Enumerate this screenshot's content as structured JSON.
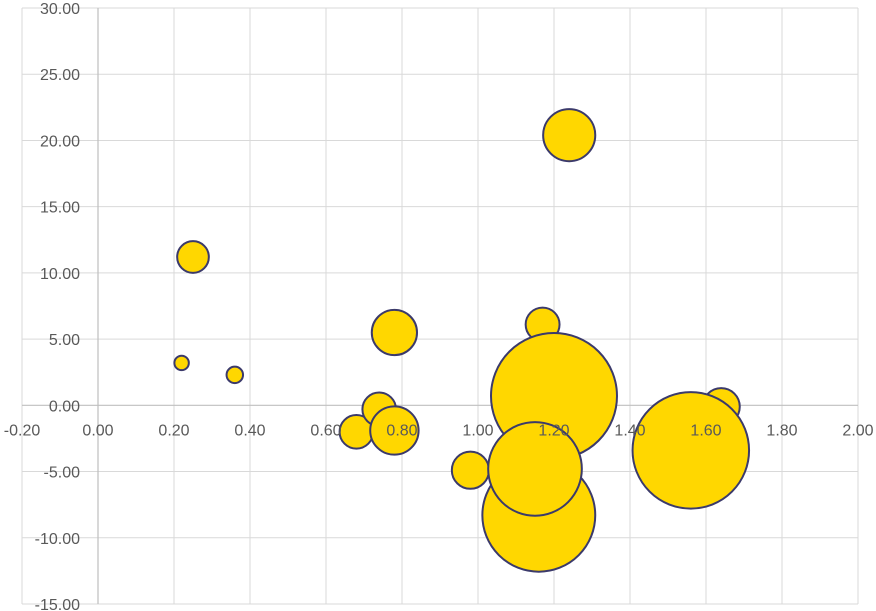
{
  "chart_data": {
    "type": "bubble",
    "title": "",
    "xlabel": "",
    "ylabel": "",
    "xlim": [
      -0.2,
      2.0
    ],
    "ylim": [
      -15,
      30
    ],
    "x_ticks": [
      -0.2,
      0.0,
      0.2,
      0.4,
      0.6,
      0.8,
      1.0,
      1.2,
      1.4,
      1.6,
      1.8,
      2.0
    ],
    "y_ticks": [
      -15,
      -10,
      -5,
      0,
      5,
      10,
      15,
      20,
      25,
      30
    ],
    "x_tick_labels": [
      "-0.20",
      "0.00",
      "0.20",
      "0.40",
      "0.60",
      "0.80",
      "1.00",
      "1.20",
      "1.40",
      "1.60",
      "1.80",
      "2.00"
    ],
    "y_tick_labels": [
      "-15.00",
      "-10.00",
      "-5.00",
      "0.00",
      "5.00",
      "10.00",
      "15.00",
      "20.00",
      "25.00",
      "30.00"
    ],
    "grid": true,
    "legend": "none",
    "colors": {
      "bubble_fill": "#ffd700",
      "bubble_stroke": "#3b3a6b",
      "grid": "#d9d9d9",
      "axis": "#bfbfbf",
      "tick_text": "#595959"
    },
    "series": [
      {
        "points": [
          {
            "x": 0.25,
            "y": 11.2,
            "size": 4.8
          },
          {
            "x": 0.22,
            "y": 3.2,
            "size": 1.0
          },
          {
            "x": 0.36,
            "y": 2.3,
            "size": 1.3
          },
          {
            "x": 1.24,
            "y": 20.4,
            "size": 13.0
          },
          {
            "x": 0.78,
            "y": 5.5,
            "size": 9.8
          },
          {
            "x": 1.17,
            "y": 6.1,
            "size": 5.5
          },
          {
            "x": 1.2,
            "y": 0.7,
            "size": 76.0
          },
          {
            "x": 1.64,
            "y": -0.1,
            "size": 6.6
          },
          {
            "x": 1.56,
            "y": -3.4,
            "size": 65.0
          },
          {
            "x": 0.68,
            "y": -2.0,
            "size": 5.4
          },
          {
            "x": 0.74,
            "y": -0.3,
            "size": 5.4
          },
          {
            "x": 0.78,
            "y": -1.9,
            "size": 11.2
          },
          {
            "x": 0.98,
            "y": -4.9,
            "size": 6.6
          },
          {
            "x": 1.16,
            "y": -8.3,
            "size": 61.0
          },
          {
            "x": 1.15,
            "y": -4.8,
            "size": 42.0
          }
        ]
      }
    ]
  }
}
